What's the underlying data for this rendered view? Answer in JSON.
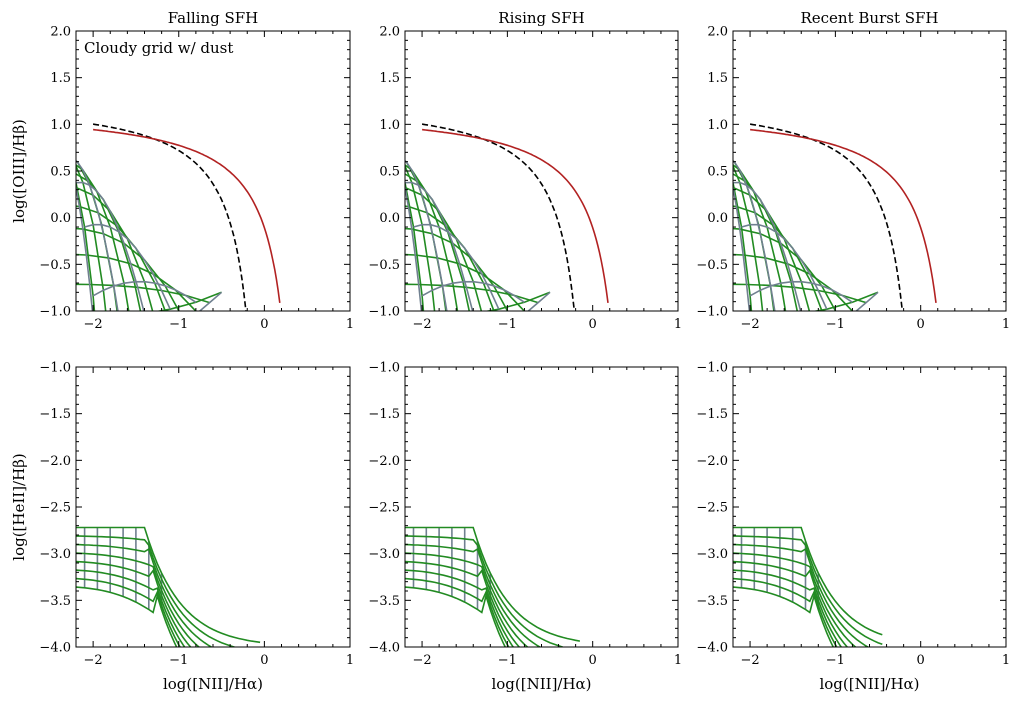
{
  "figure": {
    "annotation": "Cloudy grid w/ dust",
    "colors": {
      "grid_a": "#228B22",
      "grid_b": "#708090",
      "kauffmann": "#000000",
      "kewley": "#B22222"
    }
  },
  "chart_data": [
    {
      "type": "line",
      "title": "Falling SFH",
      "xlabel": "",
      "ylabel": "log([OIII]/Hβ)",
      "xlim": [
        -2.2,
        1.0
      ],
      "ylim": [
        -1.0,
        2.0
      ],
      "xticks": [
        -2,
        -1,
        0,
        1
      ],
      "xtick_labels": [
        "−2",
        "−1",
        "0",
        "1"
      ],
      "yticks": [
        -1.0,
        -0.5,
        0.0,
        0.5,
        1.0,
        1.5,
        2.0
      ],
      "ytick_labels": [
        "−1.0",
        "−0.5",
        "0.0",
        "0.5",
        "1.0",
        "1.5",
        "2.0"
      ],
      "annotation": "Cloudy grid w/ dust",
      "panel": "top",
      "lines": true
    },
    {
      "type": "line",
      "title": "Rising SFH",
      "xlabel": "",
      "ylabel": "",
      "xlim": [
        -2.2,
        1.0
      ],
      "ylim": [
        -1.0,
        2.0
      ],
      "xticks": [
        -2,
        -1,
        0,
        1
      ],
      "xtick_labels": [
        "−2",
        "−1",
        "0",
        "1"
      ],
      "yticks": [
        -1.0,
        -0.5,
        0.0,
        0.5,
        1.0,
        1.5,
        2.0
      ],
      "ytick_labels": [
        "−1.0",
        "−0.5",
        "0.0",
        "0.5",
        "1.0",
        "1.5",
        "2.0"
      ],
      "annotation": "",
      "panel": "top",
      "lines": true
    },
    {
      "type": "line",
      "title": "Recent Burst SFH",
      "xlabel": "",
      "ylabel": "",
      "xlim": [
        -2.2,
        1.0
      ],
      "ylim": [
        -1.0,
        2.0
      ],
      "xticks": [
        -2,
        -1,
        0,
        1
      ],
      "xtick_labels": [
        "−2",
        "−1",
        "0",
        "1"
      ],
      "yticks": [
        -1.0,
        -0.5,
        0.0,
        0.5,
        1.0,
        1.5,
        2.0
      ],
      "ytick_labels": [
        "−1.0",
        "−0.5",
        "0.0",
        "0.5",
        "1.0",
        "1.5",
        "2.0"
      ],
      "annotation": "",
      "panel": "top",
      "lines": true
    },
    {
      "type": "line",
      "title": "",
      "xlabel": "log([NII]/Hα)",
      "ylabel": "log([HeII]/Hβ)",
      "xlim": [
        -2.2,
        1.0
      ],
      "ylim": [
        -4.0,
        -1.0
      ],
      "xticks": [
        -2,
        -1,
        0,
        1
      ],
      "xtick_labels": [
        "−2",
        "−1",
        "0",
        "1"
      ],
      "yticks": [
        -4.0,
        -3.5,
        -3.0,
        -2.5,
        -2.0,
        -1.5,
        -1.0
      ],
      "ytick_labels": [
        "−4.0",
        "−3.5",
        "−3.0",
        "−2.5",
        "−2.0",
        "−1.5",
        "−1.0"
      ],
      "annotation": "",
      "panel": "bottom",
      "lines": false,
      "mesh_end": -0.35
    },
    {
      "type": "line",
      "title": "",
      "xlabel": "log([NII]/Hα)",
      "ylabel": "",
      "xlim": [
        -2.2,
        1.0
      ],
      "ylim": [
        -4.0,
        -1.0
      ],
      "xticks": [
        -2,
        -1,
        0,
        1
      ],
      "xtick_labels": [
        "−2",
        "−1",
        "0",
        "1"
      ],
      "yticks": [
        -4.0,
        -3.5,
        -3.0,
        -2.5,
        -2.0,
        -1.5,
        -1.0
      ],
      "ytick_labels": [
        "−4.0",
        "−3.5",
        "−3.0",
        "−2.5",
        "−2.0",
        "−1.5",
        "−1.0"
      ],
      "annotation": "",
      "panel": "bottom",
      "lines": false,
      "mesh_end": -0.42
    },
    {
      "type": "line",
      "title": "",
      "xlabel": "log([NII]/Hα)",
      "ylabel": "",
      "xlim": [
        -2.2,
        1.0
      ],
      "ylim": [
        -4.0,
        -1.0
      ],
      "xticks": [
        -2,
        -1,
        0,
        1
      ],
      "xtick_labels": [
        "−2",
        "−1",
        "0",
        "1"
      ],
      "yticks": [
        -4.0,
        -3.5,
        -3.0,
        -2.5,
        -2.0,
        -1.5,
        -1.0
      ],
      "ytick_labels": [
        "−4.0",
        "−3.5",
        "−3.0",
        "−2.5",
        "−2.0",
        "−1.5",
        "−1.0"
      ],
      "annotation": "",
      "panel": "bottom",
      "lines": false,
      "mesh_end": -0.75
    }
  ]
}
